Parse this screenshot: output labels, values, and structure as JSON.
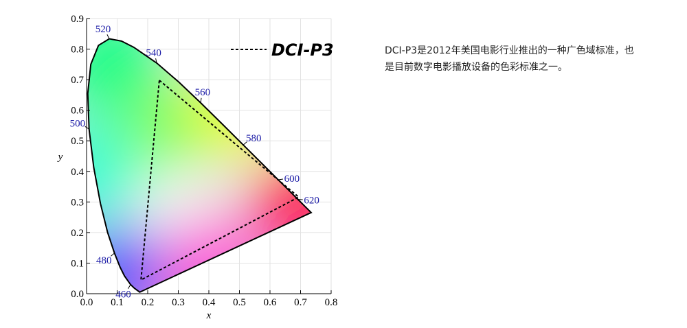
{
  "chart_data": {
    "type": "chromaticity",
    "xlabel": "x",
    "ylabel": "y",
    "xlim": [
      0,
      0.8
    ],
    "ylim": [
      0,
      0.9
    ],
    "xticks": [
      {
        "value": 0,
        "label": "0.0"
      },
      0.1,
      0.2,
      0.3,
      0.4,
      0.5,
      0.6,
      0.7,
      0.8
    ],
    "yticks": [
      {
        "value": 0,
        "label": "0.0"
      },
      0.1,
      0.2,
      0.3,
      0.4,
      0.5,
      0.6,
      0.7,
      0.8,
      0.9
    ],
    "grid": true,
    "locus": {
      "x": [
        0.1741,
        0.1566,
        0.144,
        0.1241,
        0.1096,
        0.0913,
        0.0687,
        0.0454,
        0.0235,
        0.0082,
        0.0039,
        0.0139,
        0.0389,
        0.0743,
        0.1142,
        0.1547,
        0.2296,
        0.3016,
        0.3731,
        0.4441,
        0.5125,
        0.5752,
        0.627,
        0.6658,
        0.6915,
        0.719,
        0.7347
      ],
      "y": [
        0.005,
        0.0177,
        0.0297,
        0.0578,
        0.0868,
        0.1327,
        0.2007,
        0.295,
        0.4127,
        0.5384,
        0.6548,
        0.7502,
        0.812,
        0.8338,
        0.8262,
        0.8059,
        0.7543,
        0.6923,
        0.6245,
        0.5547,
        0.4866,
        0.4242,
        0.3725,
        0.334,
        0.3083,
        0.2809,
        0.2653
      ],
      "labels": [
        null,
        null,
        "460",
        null,
        null,
        "480",
        null,
        null,
        null,
        "500",
        null,
        null,
        null,
        "520",
        null,
        null,
        "540",
        null,
        "560",
        null,
        "580",
        null,
        "600",
        null,
        "620",
        null,
        null
      ],
      "color": "#000000",
      "label_color": "#1a1aa6"
    },
    "series": [
      {
        "name": "DCI-P3",
        "color": "#000000",
        "x": [
          0.238,
          0.694,
          0.178
        ],
        "y": [
          0.698,
          0.316,
          0.045
        ]
      }
    ]
  },
  "description": "DCI-P3是2012年美国电影行业推出的一种广色域标准，也是目前数字电影播放设备的色彩标准之一。"
}
